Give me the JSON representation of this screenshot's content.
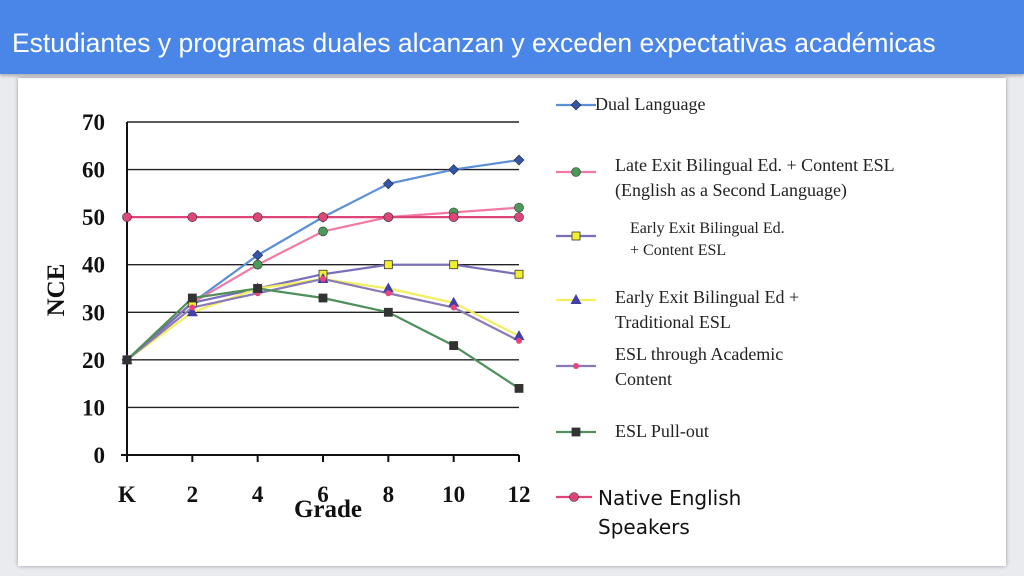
{
  "header": {
    "title": "Estudiantes y programas duales alcanzan y exceden expectativas académicas"
  },
  "chart_data": {
    "type": "line",
    "xlabel": "Grade",
    "ylabel": "NCE",
    "categories": [
      "K",
      "2",
      "4",
      "6",
      "8",
      "10",
      "12"
    ],
    "yticks": [
      0,
      10,
      20,
      30,
      40,
      50,
      60,
      70
    ],
    "ylim": [
      0,
      70
    ],
    "grid": "horizontal",
    "legend_placement": "right",
    "series": [
      {
        "name": "Dual Language",
        "legend_lines": [
          "Dual Language"
        ],
        "color": "#5b8fd6",
        "marker": "diamond",
        "marker_color": "#3555a8",
        "values": [
          20,
          32,
          42,
          50,
          57,
          60,
          62
        ]
      },
      {
        "name": "Late Exit Bilingual Ed. + Content ESL (English as a Second Language)",
        "legend_lines": [
          "Late Exit Bilingual Ed. + Content ESL",
          "(English as a Second Language)"
        ],
        "color": "#f07aa5",
        "marker": "circle",
        "marker_color": "#4a9a5a",
        "values": [
          20,
          32,
          40,
          47,
          50,
          51,
          52
        ]
      },
      {
        "name": "Early Exit Bilingual Ed. + Content ESL",
        "legend_lines": [
          "Early Exit Bilingual Ed.",
          "+ Content ESL"
        ],
        "color": "#7a6fb8",
        "marker": "square",
        "marker_color": "#f2ee30",
        "values": [
          20,
          32,
          35,
          38,
          40,
          40,
          38
        ]
      },
      {
        "name": "Early Exit Bilingual Ed + Traditional ESL",
        "legend_lines": [
          "Early Exit Bilingual Ed +",
          "Traditional ESL"
        ],
        "color": "#f2ee60",
        "marker": "triangle",
        "marker_color": "#4040a8",
        "values": [
          20,
          30,
          35,
          37,
          35,
          32,
          25
        ]
      },
      {
        "name": "ESL through Academic Content",
        "legend_lines": [
          "ESL through Academic",
          "Content"
        ],
        "color": "#8a7bb5",
        "marker": "circle-small",
        "marker_color": "#e8457a",
        "values": [
          20,
          31,
          34,
          37,
          34,
          31,
          24
        ]
      },
      {
        "name": "ESL Pull-out",
        "legend_lines": [
          "ESL Pull-out"
        ],
        "color": "#4f8f5c",
        "marker": "square",
        "marker_color": "#333333",
        "values": [
          20,
          33,
          35,
          33,
          30,
          23,
          14
        ]
      },
      {
        "name": "Native English Speakers",
        "legend_lines": [
          "Native English",
          "Speakers"
        ],
        "color": "#e0457a",
        "marker": "circle",
        "marker_color": "#e0457a",
        "values": [
          50,
          50,
          50,
          50,
          50,
          50,
          50
        ]
      }
    ]
  }
}
